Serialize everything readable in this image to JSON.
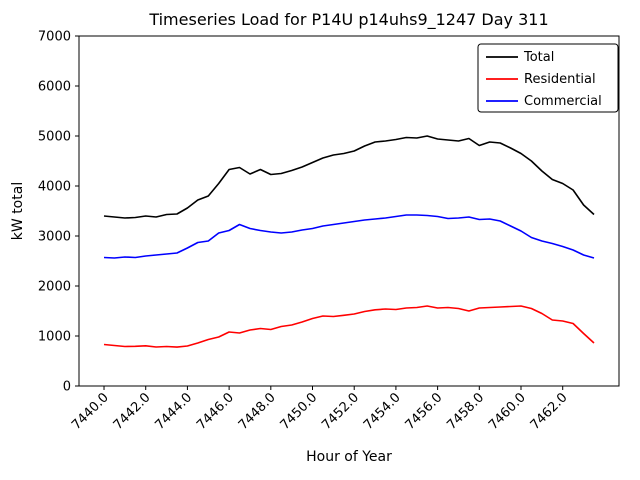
{
  "figure": {
    "title": "Timeseries Load for P14U p14uhs9_1247  Day 311"
  },
  "chart_data": {
    "type": "line",
    "title": "Timeseries Load for P14U p14uhs9_1247  Day 311",
    "xlabel": "Hour of Year",
    "ylabel": "kW total",
    "ylim": [
      0,
      7000
    ],
    "x_display_range": [
      7438.8,
      7464.7
    ],
    "grid": false,
    "legend_position": "upper right",
    "y_ticks": {
      "values": [
        0,
        1000,
        2000,
        3000,
        4000,
        5000,
        6000,
        7000
      ],
      "labels": [
        "0",
        "1000",
        "2000",
        "3000",
        "4000",
        "5000",
        "6000",
        "7000"
      ]
    },
    "x_ticks": {
      "values": [
        7440,
        7442,
        7444,
        7446,
        7448,
        7450,
        7452,
        7454,
        7456,
        7458,
        7460,
        7462
      ],
      "labels": [
        "7440.0",
        "7442.0",
        "7444.0",
        "7446.0",
        "7448.0",
        "7450.0",
        "7452.0",
        "7454.0",
        "7456.0",
        "7458.0",
        "7460.0",
        "7462.0"
      ]
    },
    "x": [
      7440.0,
      7440.5,
      7441.0,
      7441.5,
      7442.0,
      7442.5,
      7443.0,
      7443.5,
      7444.0,
      7444.5,
      7445.0,
      7445.5,
      7446.0,
      7446.5,
      7447.0,
      7447.5,
      7448.0,
      7448.5,
      7449.0,
      7449.5,
      7450.0,
      7450.5,
      7451.0,
      7451.5,
      7452.0,
      7452.5,
      7453.0,
      7453.5,
      7454.0,
      7454.5,
      7455.0,
      7455.5,
      7456.0,
      7456.5,
      7457.0,
      7457.5,
      7458.0,
      7458.5,
      7459.0,
      7459.5,
      7460.0,
      7460.5,
      7461.0,
      7461.5,
      7462.0,
      7462.5,
      7463.0,
      7463.5
    ],
    "series": [
      {
        "name": "Total",
        "color": "#000000",
        "values": [
          3400,
          3380,
          3360,
          3370,
          3400,
          3380,
          3430,
          3440,
          3560,
          3720,
          3800,
          4050,
          4330,
          4370,
          4240,
          4330,
          4230,
          4250,
          4310,
          4380,
          4470,
          4560,
          4620,
          4650,
          4700,
          4800,
          4880,
          4900,
          4930,
          4970,
          4960,
          5000,
          4940,
          4920,
          4900,
          4950,
          4810,
          4880,
          4860,
          4760,
          4650,
          4500,
          4300,
          4130,
          4050,
          3920,
          3620,
          3430
        ]
      },
      {
        "name": "Residential",
        "color": "#ff0000",
        "values": [
          830,
          810,
          790,
          795,
          805,
          780,
          790,
          778,
          800,
          860,
          930,
          980,
          1080,
          1060,
          1120,
          1150,
          1130,
          1190,
          1220,
          1280,
          1350,
          1400,
          1390,
          1415,
          1440,
          1490,
          1525,
          1540,
          1530,
          1560,
          1570,
          1600,
          1560,
          1570,
          1550,
          1500,
          1560,
          1570,
          1580,
          1590,
          1600,
          1550,
          1450,
          1320,
          1300,
          1250,
          1050,
          860
        ]
      },
      {
        "name": "Commercial",
        "color": "#0000ff",
        "values": [
          2570,
          2560,
          2580,
          2570,
          2600,
          2620,
          2640,
          2660,
          2760,
          2870,
          2900,
          3060,
          3110,
          3230,
          3150,
          3110,
          3080,
          3060,
          3080,
          3120,
          3150,
          3200,
          3230,
          3260,
          3290,
          3320,
          3340,
          3360,
          3390,
          3420,
          3420,
          3410,
          3390,
          3350,
          3360,
          3380,
          3330,
          3340,
          3300,
          3200,
          3100,
          2970,
          2900,
          2850,
          2790,
          2720,
          2620,
          2560
        ]
      }
    ]
  }
}
